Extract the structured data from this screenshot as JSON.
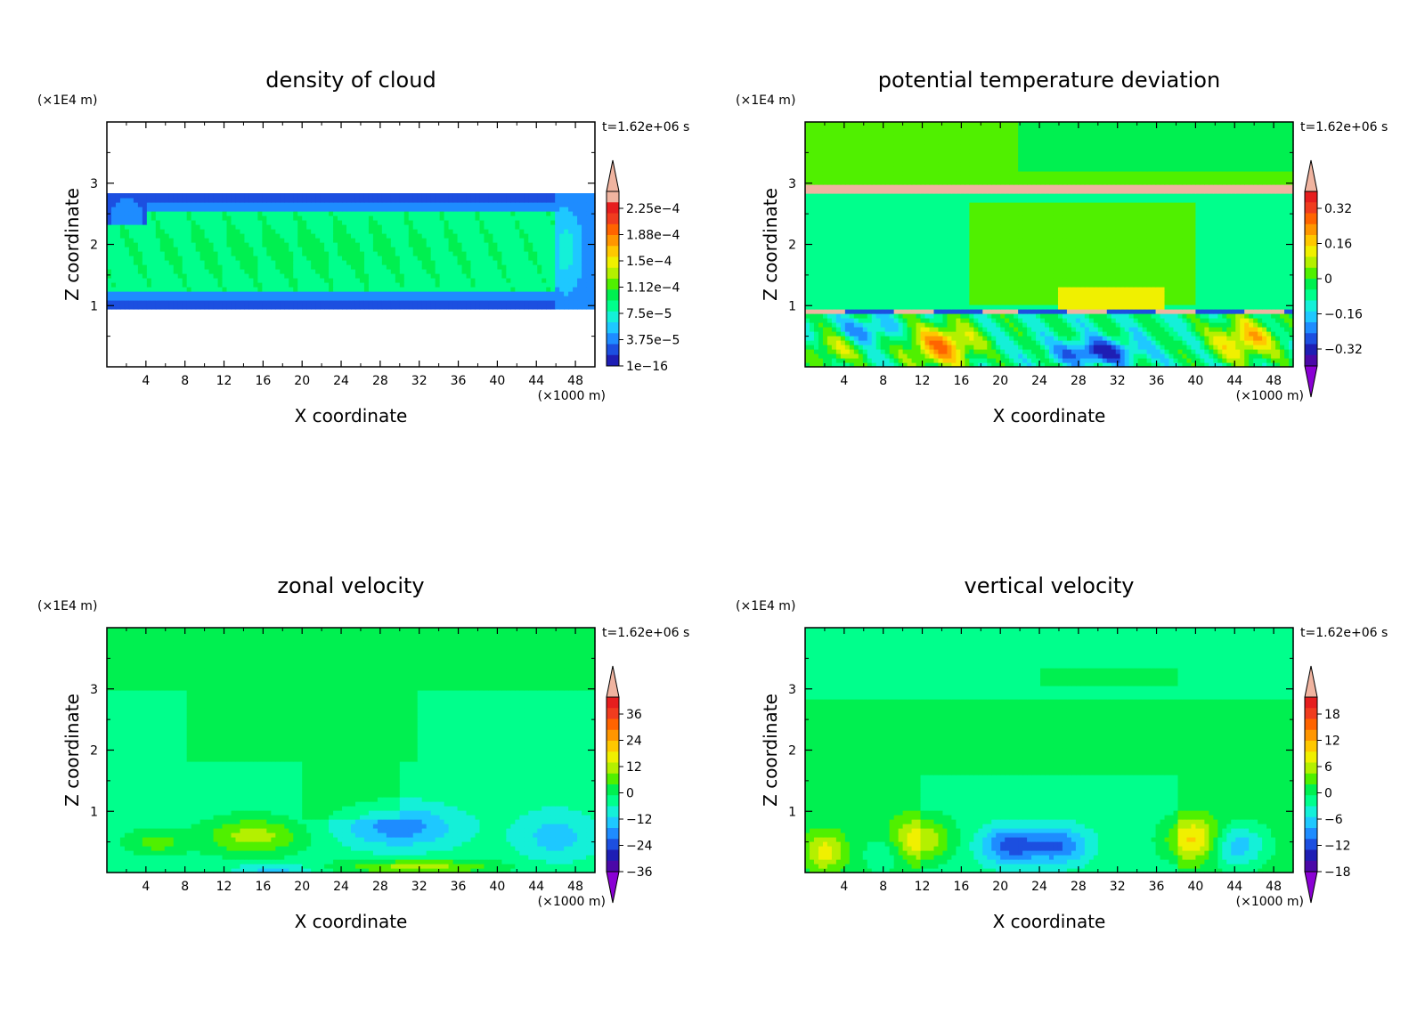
{
  "chart_data": [
    {
      "type": "heatmap",
      "title": "density of cloud",
      "xlabel": "X coordinate",
      "ylabel": "Z coordinate",
      "x_scale_label": "(×1000 m)",
      "y_scale_label": "(×1E4 m)",
      "time_label": "t=1.62e+06 s",
      "xlim": [
        0,
        50
      ],
      "ylim": [
        0,
        4
      ],
      "x_ticks": [
        "4",
        "8",
        "12",
        "16",
        "20",
        "24",
        "28",
        "32",
        "36",
        "40",
        "44",
        "48"
      ],
      "y_ticks": [
        "1",
        "2",
        "3"
      ],
      "colorbar_labels": [
        "2.25e−4",
        "1.88e−4",
        "1.5e−4",
        "1.12e−4",
        "7.5e−5",
        "3.75e−5",
        "1e−16"
      ],
      "colorbar_extend": "max",
      "field": "cloud"
    },
    {
      "type": "heatmap",
      "title": "potential temperature deviation",
      "xlabel": "X coordinate",
      "ylabel": "Z coordinate",
      "x_scale_label": "(×1000 m)",
      "y_scale_label": "(×1E4 m)",
      "time_label": "t=1.62e+06 s",
      "xlim": [
        0,
        50
      ],
      "ylim": [
        0,
        4
      ],
      "x_ticks": [
        "4",
        "8",
        "12",
        "16",
        "20",
        "24",
        "28",
        "32",
        "36",
        "40",
        "44",
        "48"
      ],
      "y_ticks": [
        "1",
        "2",
        "3"
      ],
      "colorbar_labels": [
        "0.32",
        "0.16",
        "0",
        "−0.16",
        "−0.32"
      ],
      "colorbar_extend": "both",
      "field": "theta"
    },
    {
      "type": "heatmap",
      "title": "zonal velocity",
      "xlabel": "X coordinate",
      "ylabel": "Z coordinate",
      "x_scale_label": "(×1000 m)",
      "y_scale_label": "(×1E4 m)",
      "time_label": "t=1.62e+06 s",
      "xlim": [
        0,
        50
      ],
      "ylim": [
        0,
        4
      ],
      "x_ticks": [
        "4",
        "8",
        "12",
        "16",
        "20",
        "24",
        "28",
        "32",
        "36",
        "40",
        "44",
        "48"
      ],
      "y_ticks": [
        "1",
        "2",
        "3"
      ],
      "colorbar_labels": [
        "36",
        "24",
        "12",
        "0",
        "−12",
        "−24",
        "−36"
      ],
      "colorbar_extend": "both",
      "field": "u"
    },
    {
      "type": "heatmap",
      "title": "vertical velocity",
      "xlabel": "X coordinate",
      "ylabel": "Z coordinate",
      "x_scale_label": "(×1000 m)",
      "y_scale_label": "(×1E4 m)",
      "time_label": "t=1.62e+06 s",
      "xlim": [
        0,
        50
      ],
      "ylim": [
        0,
        4
      ],
      "x_ticks": [
        "4",
        "8",
        "12",
        "16",
        "20",
        "24",
        "28",
        "32",
        "36",
        "40",
        "44",
        "48"
      ],
      "y_ticks": [
        "1",
        "2",
        "3"
      ],
      "colorbar_labels": [
        "18",
        "12",
        "6",
        "0",
        "−6",
        "−12",
        "−18"
      ],
      "colorbar_extend": "both",
      "field": "w"
    }
  ],
  "colormap": [
    "#8a00d4",
    "#4b08a8",
    "#1e1eb4",
    "#1c4fe0",
    "#1e8cff",
    "#1ec8ff",
    "#14f0d8",
    "#00ff8c",
    "#00f050",
    "#50f000",
    "#b4f000",
    "#f0f000",
    "#ffc800",
    "#ff9600",
    "#ff6400",
    "#f03c1e",
    "#e61e1e",
    "#f0b4a0"
  ]
}
